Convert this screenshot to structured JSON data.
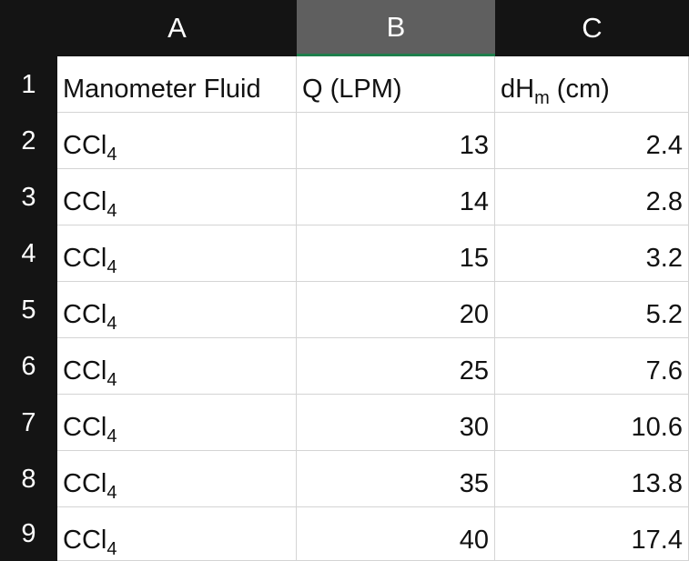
{
  "columns": [
    {
      "letter": "A",
      "selected": false
    },
    {
      "letter": "B",
      "selected": true
    },
    {
      "letter": "C",
      "selected": false
    }
  ],
  "header": {
    "col_a": "Manometer Fluid",
    "col_b": "Q (LPM)",
    "col_c_main": "dH",
    "col_c_sub": "m",
    "col_c_tail": " (cm)"
  },
  "rows": [
    {
      "num": "1"
    },
    {
      "num": "2",
      "fluid_main": "CCl",
      "fluid_sub": "4",
      "q": "13",
      "dh": "2.4"
    },
    {
      "num": "3",
      "fluid_main": "CCl",
      "fluid_sub": "4",
      "q": "14",
      "dh": "2.8"
    },
    {
      "num": "4",
      "fluid_main": "CCl",
      "fluid_sub": "4",
      "q": "15",
      "dh": "3.2"
    },
    {
      "num": "5",
      "fluid_main": "CCl",
      "fluid_sub": "4",
      "q": "20",
      "dh": "5.2"
    },
    {
      "num": "6",
      "fluid_main": "CCl",
      "fluid_sub": "4",
      "q": "25",
      "dh": "7.6"
    },
    {
      "num": "7",
      "fluid_main": "CCl",
      "fluid_sub": "4",
      "q": "30",
      "dh": "10.6"
    },
    {
      "num": "8",
      "fluid_main": "CCl",
      "fluid_sub": "4",
      "q": "35",
      "dh": "13.8"
    },
    {
      "num": "9",
      "fluid_main": "CCl",
      "fluid_sub": "4",
      "q": "40",
      "dh": "17.4"
    }
  ],
  "colors": {
    "header_bg": "#141414",
    "selected_header_bg": "#5f5f5f",
    "selection_accent": "#1e7e4b",
    "grid_line": "#d4d4d4"
  }
}
